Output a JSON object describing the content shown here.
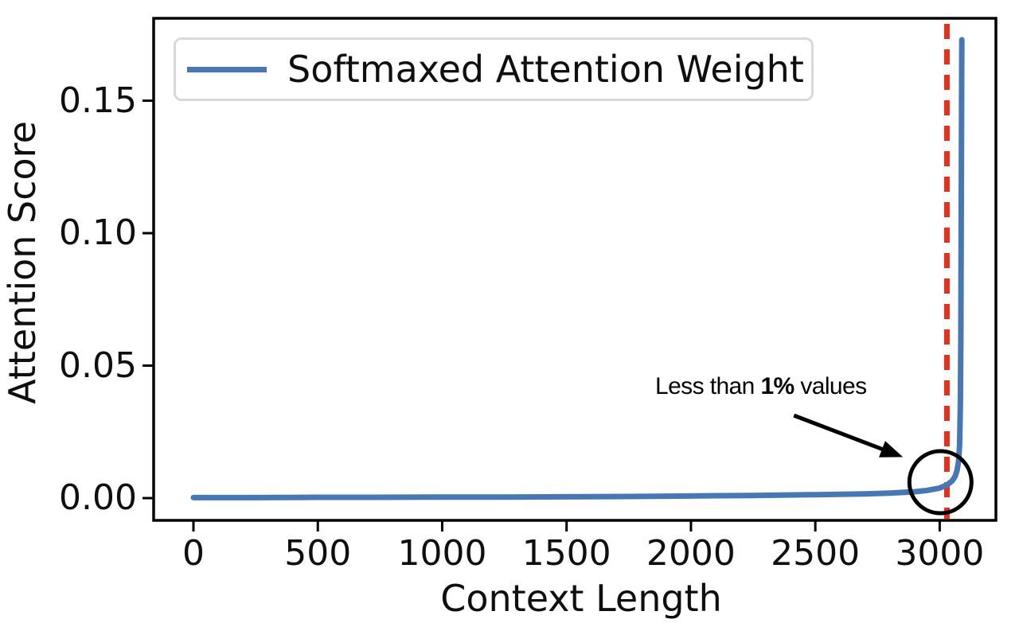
{
  "figure": {
    "background": "#ffffff",
    "text_color": "#0f0f0f"
  },
  "chart_data": {
    "type": "line",
    "title": "",
    "xlabel": "Context Length",
    "ylabel": "Attention Score",
    "xlim": [
      -160,
      3226
    ],
    "ylim": [
      -0.0084,
      0.1811
    ],
    "grid": false,
    "xticks": {
      "values": [
        0,
        500,
        1000,
        1500,
        2000,
        2500,
        3000
      ],
      "labels": [
        "0",
        "500",
        "1000",
        "1500",
        "2000",
        "2500",
        "3000"
      ]
    },
    "yticks": {
      "values": [
        0.0,
        0.05,
        0.1,
        0.15
      ],
      "labels": [
        "0.00",
        "0.05",
        "0.10",
        "0.15"
      ]
    },
    "series": [
      {
        "name": "Softmaxed Attention Weight",
        "color": "#4878b4",
        "line_width": 7,
        "points": [
          [
            0,
            0.0002
          ],
          [
            250,
            0.0002
          ],
          [
            500,
            0.0003
          ],
          [
            750,
            0.0003
          ],
          [
            1000,
            0.0004
          ],
          [
            1250,
            0.0004
          ],
          [
            1500,
            0.0005
          ],
          [
            1750,
            0.0006
          ],
          [
            2000,
            0.0008
          ],
          [
            2250,
            0.001
          ],
          [
            2500,
            0.0013
          ],
          [
            2700,
            0.0016
          ],
          [
            2800,
            0.0019
          ],
          [
            2900,
            0.0024
          ],
          [
            2950,
            0.0029
          ],
          [
            3000,
            0.0038
          ],
          [
            3030,
            0.005
          ],
          [
            3050,
            0.0065
          ],
          [
            3062,
            0.0082
          ],
          [
            3070,
            0.0105
          ],
          [
            3076,
            0.014
          ],
          [
            3080,
            0.02
          ],
          [
            3083,
            0.035
          ],
          [
            3085,
            0.06
          ],
          [
            3086,
            0.09
          ],
          [
            3087,
            0.12
          ],
          [
            3088,
            0.15
          ],
          [
            3089,
            0.173
          ]
        ]
      }
    ],
    "vline": {
      "x": 3029,
      "color": "#e5301d",
      "style": "dashed",
      "width": 7
    },
    "annotation": {
      "text_prefix": "Less than ",
      "text_bold": "1%",
      "text_suffix": " values",
      "arrow_from_xy": [
        2414,
        0.0312
      ],
      "arrow_to_xy": [
        2852,
        0.0155
      ],
      "circle_center_xy": [
        3003,
        0.006
      ],
      "circle_radius_px": 39,
      "color": "#000000"
    },
    "legend": {
      "position": "upper left",
      "entries": [
        "Softmaxed Attention Weight"
      ]
    }
  }
}
